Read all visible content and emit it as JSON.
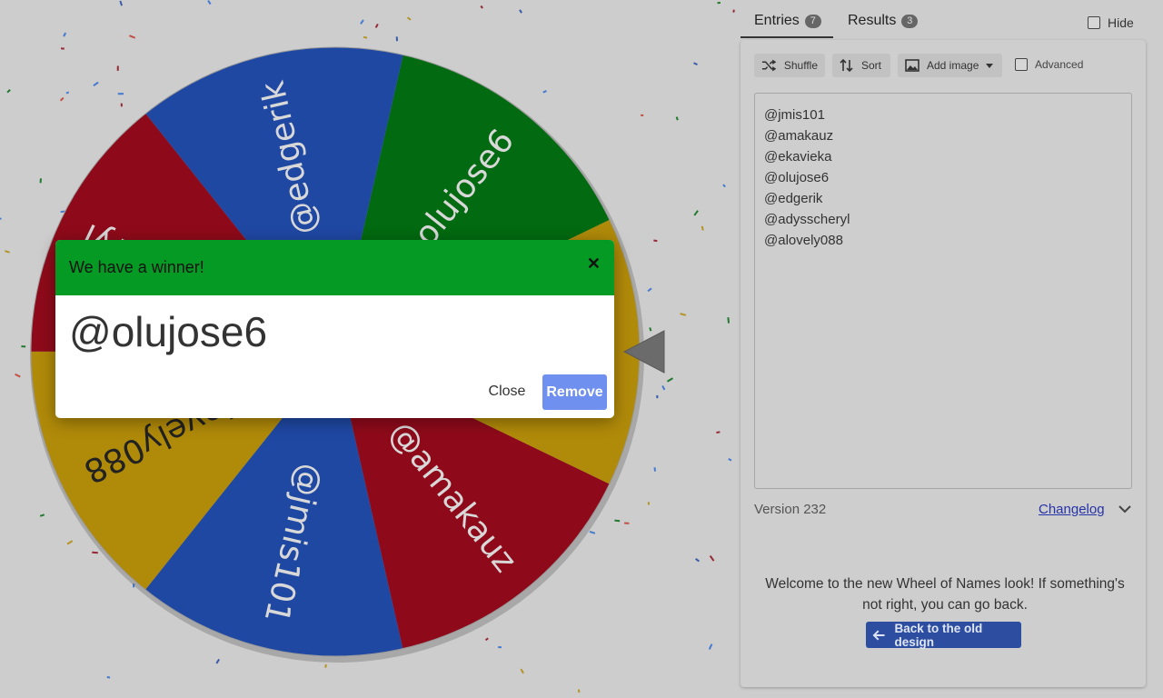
{
  "tabs": {
    "entries_label": "Entries",
    "entries_count": "7",
    "results_label": "Results",
    "results_count": "3",
    "hide_label": "Hide"
  },
  "toolbar": {
    "shuffle_label": "Shuffle",
    "sort_label": "Sort",
    "add_image_label": "Add image",
    "advanced_label": "Advanced"
  },
  "entries": [
    "@jmis101",
    "@amakauz",
    "@ekavieka",
    "@olujose6",
    "@edgerik",
    "@adysscheryl",
    "@alovely088"
  ],
  "footer": {
    "version": "Version 232",
    "changelog_label": "Changelog",
    "welcome_text": "Welcome to the new Wheel of Names look! If something's not right, you can go back.",
    "old_design_label": "Back to the old design"
  },
  "modal": {
    "title": "We have a winner!",
    "winner": "@olujose6",
    "close_label": "Close",
    "remove_label": "Remove"
  },
  "wheel": {
    "segments": [
      {
        "label": "@jmis101",
        "color": "#1f48a3",
        "text_color": "#d8d8d8"
      },
      {
        "label": "@amakauz",
        "color": "#8e0a1a",
        "text_color": "#d8d8d8"
      },
      {
        "label": "@ekavieka",
        "color": "#b08a09",
        "text_color": "#222222"
      },
      {
        "label": "@olujose6",
        "color": "#026a10",
        "text_color": "#d8d8d8"
      },
      {
        "label": "@edgerik",
        "color": "#1f48a3",
        "text_color": "#d8d8d8"
      },
      {
        "label": "@adysscheryl",
        "color": "#8e0a1a",
        "text_color": "#d8d8d8"
      },
      {
        "label": "@alovely088",
        "color": "#b08a09",
        "text_color": "#222222"
      }
    ]
  },
  "colors": {
    "modal_header": "#059a23",
    "remove_button": "#6f90ee",
    "old_design_button": "#2d4ea0",
    "link": "#2632a8"
  },
  "icons": [
    "shuffle-icon",
    "sort-icon",
    "image-icon",
    "dropdown-caret-icon",
    "close-icon",
    "chevron-down-icon",
    "arrow-left-icon",
    "pointer-arrow-icon"
  ]
}
